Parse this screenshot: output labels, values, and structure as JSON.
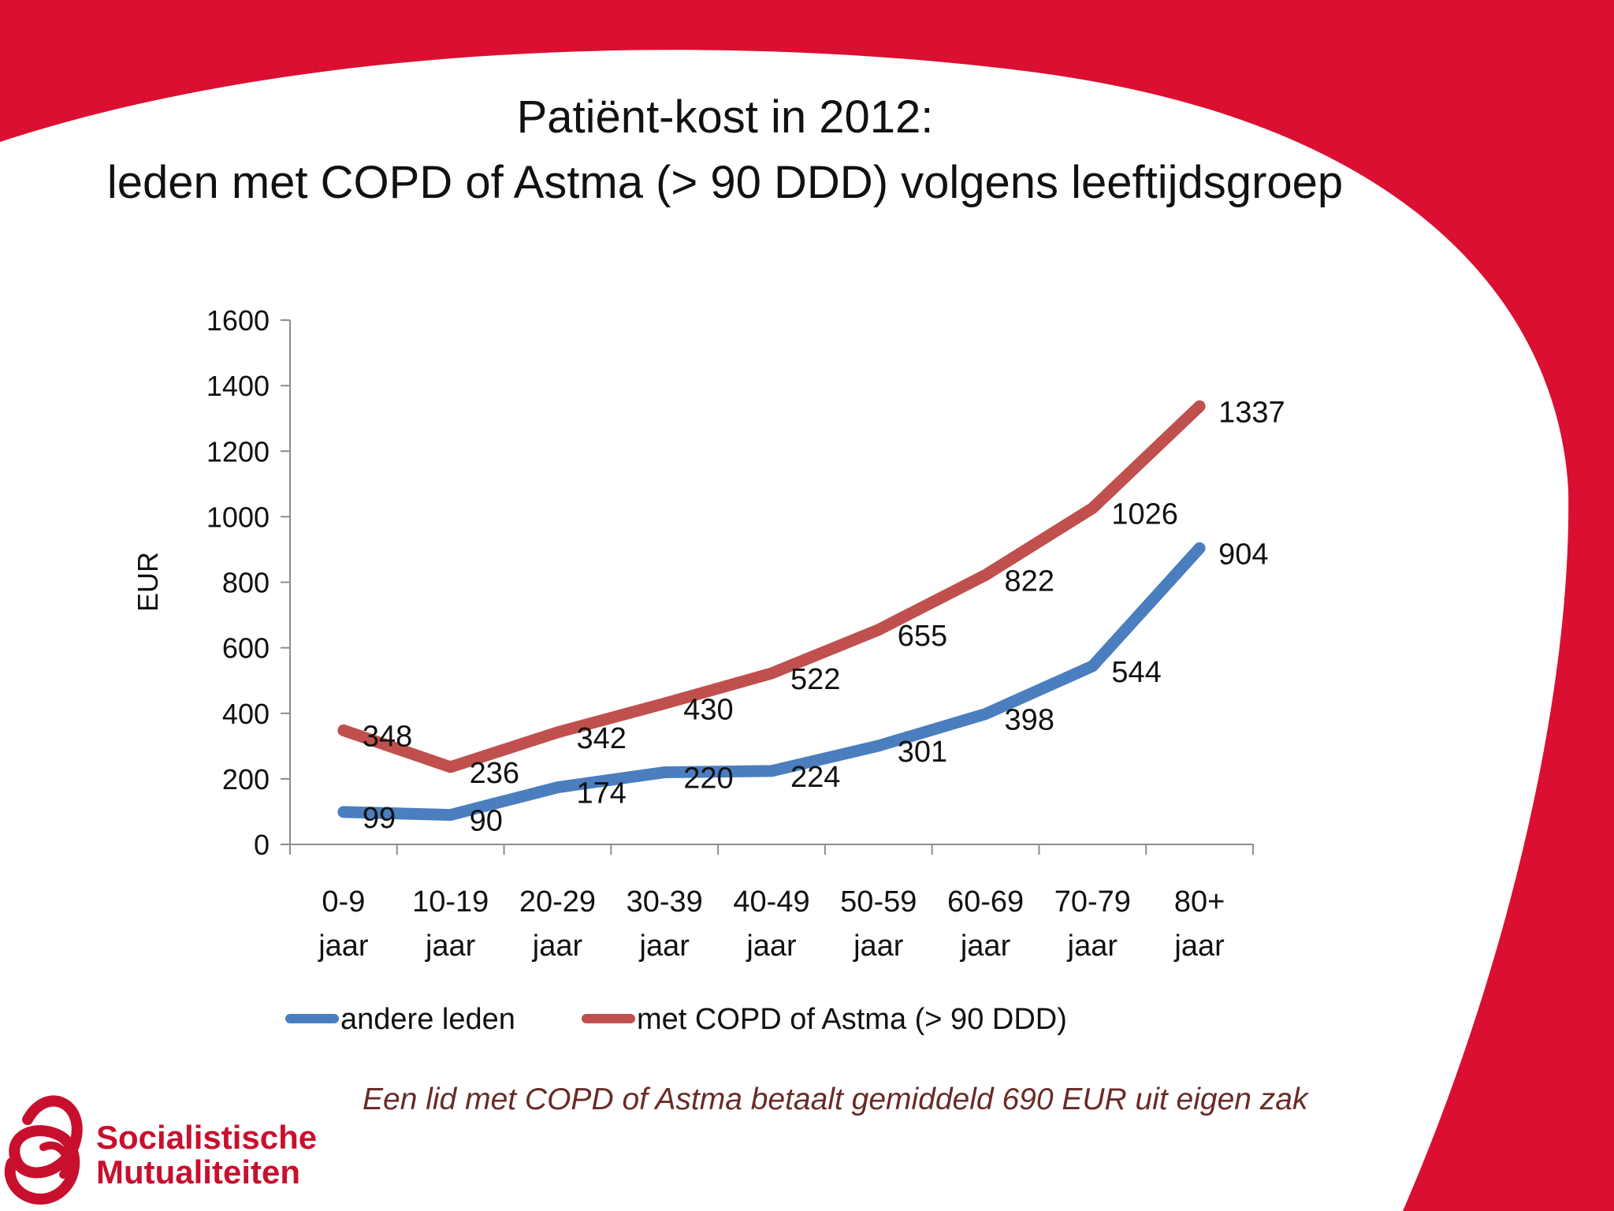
{
  "slide": {
    "title_line_1": "Patiënt-kost in 2012:",
    "title_line_2": "leden met COPD of Astma (> 90 DDD) volgens leeftijdsgroep",
    "footnote": "Een lid met COPD of Astma betaalt gemiddeld 690 EUR uit eigen zak",
    "colors": {
      "accent_red": "#db0f32",
      "footnote": "#6a2a27"
    }
  },
  "logo": {
    "line_1": "Socialistische",
    "line_2": "Mutualiteiten",
    "color": "#c8102e"
  },
  "chart_data": {
    "type": "line",
    "title": "",
    "xlabel": "",
    "ylabel": "EUR",
    "ylim": [
      0,
      1600
    ],
    "yticks": [
      0,
      200,
      400,
      600,
      800,
      1000,
      1200,
      1400,
      1600
    ],
    "grid": false,
    "legend_position": "bottom",
    "categories": [
      [
        "0-9",
        "jaar"
      ],
      [
        "10-19",
        "jaar"
      ],
      [
        "20-29",
        "jaar"
      ],
      [
        "30-39",
        "jaar"
      ],
      [
        "40-49",
        "jaar"
      ],
      [
        "50-59",
        "jaar"
      ],
      [
        "60-69",
        "jaar"
      ],
      [
        "70-79",
        "jaar"
      ],
      [
        "80+",
        "jaar"
      ]
    ],
    "series": [
      {
        "name": "andere leden",
        "color": "#4a7ebf",
        "values": [
          99,
          90,
          174,
          220,
          224,
          301,
          398,
          544,
          904
        ]
      },
      {
        "name": "met COPD of Astma (> 90 DDD)",
        "color": "#c0504d",
        "values": [
          348,
          236,
          342,
          430,
          522,
          655,
          822,
          1026,
          1337
        ]
      }
    ]
  }
}
